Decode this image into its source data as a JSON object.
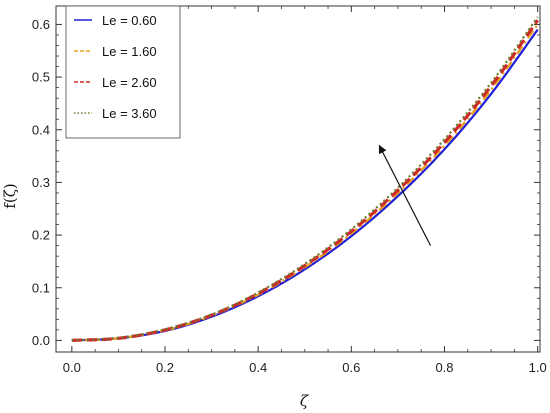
{
  "chart_data": {
    "type": "line",
    "xlabel": "ζ",
    "ylabel": "f(ζ)",
    "xlim": [
      0.0,
      1.0
    ],
    "ylim": [
      0.0,
      0.62
    ],
    "x_ticks": [
      "0.0",
      "0.2",
      "0.4",
      "0.6",
      "0.8",
      "1.0"
    ],
    "y_ticks": [
      "0.0",
      "0.1",
      "0.2",
      "0.3",
      "0.4",
      "0.5",
      "0.6"
    ],
    "grid": false,
    "legend_position": "top-left",
    "x": [
      0.0,
      0.1,
      0.2,
      0.3,
      0.4,
      0.5,
      0.6,
      0.7,
      0.8,
      0.9,
      1.0
    ],
    "series": [
      {
        "name": "Le = 0.60",
        "color": "#1f1fd6",
        "style": "solid",
        "values": [
          0.0,
          0.004,
          0.018,
          0.045,
          0.084,
          0.135,
          0.198,
          0.274,
          0.363,
          0.468,
          0.59
        ]
      },
      {
        "name": "Le = 1.60",
        "color": "#e8a020",
        "style": "dashdot",
        "values": [
          0.0,
          0.004,
          0.019,
          0.047,
          0.087,
          0.139,
          0.203,
          0.28,
          0.37,
          0.476,
          0.6
        ]
      },
      {
        "name": "Le = 2.60",
        "color": "#d02828",
        "style": "dashed",
        "values": [
          0.0,
          0.004,
          0.02,
          0.048,
          0.089,
          0.142,
          0.207,
          0.285,
          0.376,
          0.483,
          0.608
        ]
      },
      {
        "name": "Le = 3.60",
        "color": "#6a7a2a",
        "style": "dotted",
        "values": [
          0.0,
          0.005,
          0.021,
          0.049,
          0.091,
          0.145,
          0.211,
          0.29,
          0.382,
          0.489,
          0.614
        ]
      }
    ],
    "annotation": {
      "type": "arrow",
      "from": [
        0.77,
        0.18
      ],
      "to": [
        0.66,
        0.37
      ]
    }
  }
}
